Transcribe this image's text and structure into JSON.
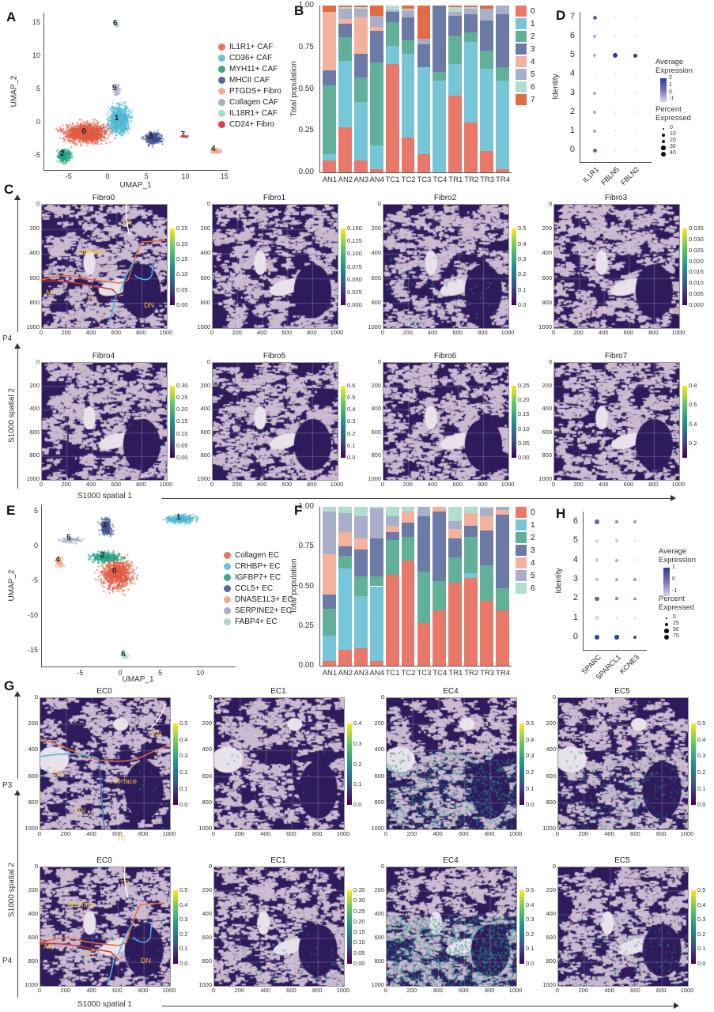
{
  "panel_labels": {
    "A": "A",
    "B": "B",
    "C": "C",
    "D": "D",
    "E": "E",
    "F": "F",
    "G": "G",
    "H": "H"
  },
  "chart_data": [
    {
      "id": "A",
      "type": "scatter",
      "xlabel": "UMAP_1",
      "ylabel": "UMAP_2",
      "xticks": [
        -5,
        0,
        5,
        10,
        15
      ],
      "yticks": [
        -5,
        0,
        5,
        10,
        15
      ],
      "xlim": [
        -8.5,
        15.5
      ],
      "ylim": [
        -7,
        16.5
      ],
      "legend": [
        {
          "label": "IL1R1+ CAF",
          "color": "#e8735f"
        },
        {
          "label": "CD36+ CAF",
          "color": "#6cc3d8"
        },
        {
          "label": "MYH11+ CAF",
          "color": "#3aa88c"
        },
        {
          "label": "MHCII CAF",
          "color": "#58689c"
        },
        {
          "label": "PTGDS+ Fibro",
          "color": "#f0ae98"
        },
        {
          "label": "Collagen CAF",
          "color": "#a7acc8"
        },
        {
          "label": "IL18R1+ CAF",
          "color": "#a9dac9"
        },
        {
          "label": "CD24+ Fibro",
          "color": "#e0434f"
        }
      ],
      "cluster_colors": [
        "#e05a40",
        "#4fb8d4",
        "#22a182",
        "#3d4f8f",
        "#eea585",
        "#a4a8c8",
        "#a0d5c4",
        "#d93a3a"
      ],
      "clusters": [
        {
          "label": "0",
          "center": [
            -2.8,
            -1.5
          ]
        },
        {
          "label": "1",
          "center": [
            1.4,
            0.5
          ]
        },
        {
          "label": "2",
          "center": [
            -5.6,
            -4.9
          ]
        },
        {
          "label": "3",
          "center": [
            5.8,
            -2.3
          ]
        },
        {
          "label": "4",
          "center": [
            13.8,
            -4.2
          ]
        },
        {
          "label": "5",
          "center": [
            1.1,
            5.0
          ]
        },
        {
          "label": "6",
          "center": [
            1.2,
            14.8
          ]
        },
        {
          "label": "7",
          "center": [
            9.9,
            -2.0
          ]
        }
      ]
    },
    {
      "id": "B",
      "type": "bar",
      "stacked": true,
      "ylabel": "Total population",
      "ylim": [
        0,
        1
      ],
      "yticks": [
        "0.00",
        "0.25",
        "0.50",
        "0.75",
        "1.00"
      ],
      "categories": [
        "AN1",
        "AN2",
        "AN3",
        "AN4",
        "TC1",
        "TC2",
        "TC3",
        "TC4",
        "TR1",
        "TR2",
        "TR3",
        "TR4"
      ],
      "legend_position": "right",
      "series": [
        {
          "name": "0",
          "color": "#e8786a",
          "values": [
            0.07,
            0.27,
            0.07,
            0.02,
            0.65,
            0.21,
            0.11,
            0.0,
            0.46,
            0.3,
            0.13,
            0.02
          ]
        },
        {
          "name": "1",
          "color": "#78c5d8",
          "values": [
            0.04,
            0.4,
            0.35,
            0.14,
            0.11,
            0.5,
            0.52,
            0.55,
            0.19,
            0.48,
            0.49,
            0.53
          ]
        },
        {
          "name": "2",
          "color": "#62b09a",
          "values": [
            0.41,
            0.14,
            0.15,
            0.5,
            0.14,
            0.08,
            0.0,
            0.05,
            0.17,
            0.06,
            0.11,
            0.08
          ]
        },
        {
          "name": "3",
          "color": "#6c7aa6",
          "values": [
            0.09,
            0.08,
            0.14,
            0.19,
            0.06,
            0.14,
            0.14,
            0.4,
            0.12,
            0.11,
            0.18,
            0.32
          ]
        },
        {
          "name": "4",
          "color": "#f2b29e",
          "values": [
            0.35,
            0.03,
            0.22,
            0.02,
            0.0,
            0.0,
            0.0,
            0.0,
            0.0,
            0.0,
            0.0,
            0.0
          ]
        },
        {
          "name": "5",
          "color": "#a9aec9",
          "values": [
            0.0,
            0.06,
            0.05,
            0.07,
            0.01,
            0.04,
            0.03,
            0.0,
            0.02,
            0.03,
            0.07,
            0.05
          ]
        },
        {
          "name": "6",
          "color": "#b3ddd0",
          "values": [
            0.0,
            0.01,
            0.01,
            0.0,
            0.03,
            0.01,
            0.0,
            0.0,
            0.03,
            0.01,
            0.0,
            0.0
          ]
        },
        {
          "name": "7",
          "color": "#e26a45",
          "values": [
            0.04,
            0.01,
            0.01,
            0.06,
            0.0,
            0.02,
            0.2,
            0.0,
            0.01,
            0.01,
            0.02,
            0.0
          ]
        }
      ]
    },
    {
      "id": "D",
      "type": "dotplot",
      "ylabel": "Identity",
      "identities": [
        "0",
        "1",
        "2",
        "3",
        "4",
        "5",
        "6",
        "7"
      ],
      "genes": [
        "IL1R1",
        "FBLN5",
        "FBLN2"
      ],
      "avg_expression": [
        [
          1.5,
          -1,
          -1
        ],
        [
          0,
          -1,
          -1
        ],
        [
          0,
          -1,
          -1
        ],
        [
          0,
          -1,
          -1
        ],
        [
          -1,
          -1,
          -1
        ],
        [
          0,
          2.5,
          2.5
        ],
        [
          0,
          -1,
          -1
        ],
        [
          1.5,
          -1,
          -1
        ]
      ],
      "percent_expressed": [
        [
          25,
          3,
          3
        ],
        [
          8,
          3,
          3
        ],
        [
          10,
          4,
          4
        ],
        [
          12,
          3,
          3
        ],
        [
          2,
          3,
          3
        ],
        [
          10,
          45,
          25
        ],
        [
          12,
          3,
          3
        ],
        [
          25,
          3,
          3
        ]
      ],
      "color_legend_title": "Average Expression",
      "color_ticks": [
        "2",
        "1",
        "0",
        "-1"
      ],
      "size_legend_title": "Percent Expressed",
      "size_ticks": [
        "0",
        "10",
        "20",
        "30",
        "40"
      ]
    },
    {
      "id": "E",
      "type": "scatter",
      "xlabel": "UMAP_1",
      "ylabel": "UMAP_2",
      "xticks": [
        -5,
        0,
        5,
        10
      ],
      "yticks": [
        -15,
        -10,
        -5,
        0,
        5
      ],
      "xlim": [
        -10,
        14
      ],
      "ylim": [
        -17.5,
        5.5
      ],
      "legend": [
        {
          "label": "Collagen EC",
          "color": "#e8735f"
        },
        {
          "label": "CRHBP+ EC",
          "color": "#6cc3d8"
        },
        {
          "label": "IGFBP7+ EC",
          "color": "#3aa88c"
        },
        {
          "label": "CCL5+ EC",
          "color": "#58689c"
        },
        {
          "label": "DNASE1L3+ EC",
          "color": "#f0ae98"
        },
        {
          "label": "SERPINE2+ EC",
          "color": "#a7acc8"
        },
        {
          "label": "FABP4+ EC",
          "color": "#a9dac9"
        }
      ],
      "cluster_colors": [
        "#e05a40",
        "#4fb8d4",
        "#22a182",
        "#3d4f8f",
        "#eea585",
        "#a4a8c8",
        "#a0d5c4"
      ],
      "clusters": [
        {
          "label": "0",
          "center": [
            -0.5,
            -3.8
          ]
        },
        {
          "label": "1",
          "center": [
            7.5,
            4.0
          ]
        },
        {
          "label": "2",
          "center": [
            -2.0,
            -1.5
          ]
        },
        {
          "label": "3",
          "center": [
            -1.8,
            2.8
          ]
        },
        {
          "label": "4",
          "center": [
            -7.6,
            -2.2
          ]
        },
        {
          "label": "5",
          "center": [
            -6.2,
            1.0
          ]
        },
        {
          "label": "6",
          "center": [
            0.6,
            -15.7
          ]
        }
      ]
    },
    {
      "id": "F",
      "type": "bar",
      "stacked": true,
      "ylabel": "Total population",
      "ylim": [
        0,
        1
      ],
      "yticks": [
        "0.00",
        "0.25",
        "0.50",
        "0.75",
        "1.00"
      ],
      "categories": [
        "AN1",
        "AN2",
        "AN3",
        "AN4",
        "TC1",
        "TC2",
        "TC3",
        "TC4",
        "TR1",
        "TR2",
        "TR3",
        "TR4"
      ],
      "legend_position": "right",
      "series": [
        {
          "name": "0",
          "color": "#e8786a",
          "values": [
            0.03,
            0.1,
            0.11,
            0.03,
            0.57,
            0.66,
            0.27,
            0.35,
            0.52,
            0.55,
            0.41,
            0.35
          ]
        },
        {
          "name": "1",
          "color": "#78c5d8",
          "values": [
            0.16,
            0.51,
            0.33,
            0.47,
            0.0,
            0.0,
            0.0,
            0.0,
            0.0,
            0.03,
            0.0,
            0.0
          ]
        },
        {
          "name": "2",
          "color": "#62b09a",
          "values": [
            0.17,
            0.08,
            0.12,
            0.06,
            0.22,
            0.15,
            0.32,
            0.18,
            0.16,
            0.23,
            0.22,
            0.14
          ]
        },
        {
          "name": "3",
          "color": "#6c7aa6",
          "values": [
            0.09,
            0.06,
            0.17,
            0.24,
            0.05,
            0.09,
            0.35,
            0.44,
            0.12,
            0.07,
            0.22,
            0.46
          ]
        },
        {
          "name": "4",
          "color": "#f2b29e",
          "values": [
            0.25,
            0.09,
            0.07,
            0.0,
            0.04,
            0.07,
            0.0,
            0.03,
            0.06,
            0.08,
            0.09,
            0.03
          ]
        },
        {
          "name": "5",
          "color": "#a9aec9",
          "values": [
            0.27,
            0.12,
            0.14,
            0.19,
            0.06,
            0.0,
            0.06,
            0.0,
            0.05,
            0.0,
            0.05,
            0.02
          ]
        },
        {
          "name": "6",
          "color": "#b3ddd0",
          "values": [
            0.03,
            0.04,
            0.06,
            0.01,
            0.06,
            0.03,
            0.0,
            0.0,
            0.09,
            0.04,
            0.01,
            0.0
          ]
        }
      ]
    },
    {
      "id": "H",
      "type": "dotplot",
      "ylabel": "Identity",
      "identities": [
        "0",
        "1",
        "2",
        "3",
        "4",
        "5",
        "6"
      ],
      "genes": [
        "SPARC",
        "SPARCL1",
        "KCNE3"
      ],
      "avg_expression": [
        [
          1.5,
          1.5,
          1.5
        ],
        [
          -1,
          -1,
          -1
        ],
        [
          0.8,
          0.5,
          0.3
        ],
        [
          -0.5,
          -0.2,
          0
        ],
        [
          -0.8,
          -0.3,
          -1
        ],
        [
          -1,
          -0.7,
          -1
        ],
        [
          0.8,
          0.3,
          0
        ]
      ],
      "percent_expressed": [
        [
          65,
          50,
          25
        ],
        [
          45,
          3,
          3
        ],
        [
          45,
          25,
          10
        ],
        [
          40,
          25,
          8
        ],
        [
          40,
          25,
          3
        ],
        [
          40,
          20,
          5
        ],
        [
          50,
          25,
          8
        ]
      ],
      "color_legend_title": "Average Expression",
      "color_ticks": [
        "1",
        "0",
        "-1"
      ],
      "size_legend_title": "Percent Expressed",
      "size_ticks": [
        "0",
        "25",
        "50",
        "75"
      ]
    }
  ],
  "panel_c": {
    "row_label": "P4",
    "y_axis_label": "S1000 spatial 2",
    "x_axis_label": "S1000 spatial 1",
    "axis_ticks": [
      "0",
      "200",
      "400",
      "600",
      "800",
      "1000"
    ],
    "regions": [
      "TR",
      "Interface",
      "AN",
      "TC",
      "DN"
    ],
    "maps": [
      {
        "title": "Fibro0",
        "colorbar_ticks": [
          "0.25",
          "0.20",
          "0.15",
          "0.10",
          "0.05",
          "0.00"
        ]
      },
      {
        "title": "Fibro1",
        "colorbar_ticks": [
          "0.150",
          "0.125",
          "0.100",
          "0.075",
          "0.050",
          "0.025",
          "0.000"
        ]
      },
      {
        "title": "Fibro2",
        "colorbar_ticks": [
          "0.5",
          "0.4",
          "0.3",
          "0.2",
          "0.1",
          "0.0"
        ]
      },
      {
        "title": "Fibro3",
        "colorbar_ticks": [
          "0.035",
          "0.030",
          "0.025",
          "0.020",
          "0.015",
          "0.010",
          "0.005",
          "0.000"
        ]
      },
      {
        "title": "Fibro4",
        "colorbar_ticks": [
          "0.30",
          "0.25",
          "0.20",
          "0.15",
          "0.10",
          "0.05",
          "0.00"
        ]
      },
      {
        "title": "Fibro5",
        "colorbar_ticks": [
          "0.6",
          "0.5",
          "0.4",
          "0.3",
          "0.2",
          "0.1",
          "0.0"
        ]
      },
      {
        "title": "Fibro6",
        "colorbar_ticks": [
          "0.25",
          "0.20",
          "0.15",
          "0.10",
          "0.05",
          "0.00"
        ]
      },
      {
        "title": "Fibro7",
        "colorbar_ticks": [
          "0.8",
          "0.6",
          "0.4",
          "0.2"
        ]
      }
    ]
  },
  "panel_g": {
    "row_labels": [
      "P3",
      "P4"
    ],
    "y_axis_label": "S1000 spatial 2",
    "x_axis_label": "S1000 spatial 1",
    "axis_ticks": [
      "0",
      "200",
      "400",
      "600",
      "800",
      "1000"
    ],
    "regions_p3": [
      "AN",
      "TR",
      "Interface",
      "DN",
      "TC"
    ],
    "regions_p4": [
      "TR",
      "Interface",
      "AN",
      "TC",
      "DN"
    ],
    "maps": [
      {
        "title": "EC0",
        "colorbar_ticks": [
          "0.5",
          "0.4",
          "0.3",
          "0.2",
          "0.1",
          "0.0"
        ]
      },
      {
        "title": "EC1",
        "colorbar_ticks": [
          "0.4",
          "0.3",
          "0.2",
          "0.1",
          "0.0"
        ]
      },
      {
        "title": "EC4",
        "colorbar_ticks": [
          "0.5",
          "0.4",
          "0.3",
          "0.2",
          "0.1",
          "0.0"
        ]
      },
      {
        "title": "EC5",
        "colorbar_ticks": [
          "0.5",
          "0.4",
          "0.3",
          "0.2",
          "0.1",
          "0.0"
        ]
      },
      {
        "title": "EC0",
        "colorbar_ticks": [
          "0.5",
          "0.4",
          "0.3",
          "0.2",
          "0.1",
          "0.0"
        ]
      },
      {
        "title": "EC1",
        "colorbar_ticks": [
          "0.35",
          "0.30",
          "0.25",
          "0.20",
          "0.15",
          "0.10",
          "0.05",
          "0.00"
        ]
      },
      {
        "title": "EC4",
        "colorbar_ticks": [
          "0.5",
          "0.4",
          "0.3",
          "0.2",
          "0.1",
          "0.0"
        ]
      },
      {
        "title": "EC5",
        "colorbar_ticks": [
          "0.5",
          "0.4",
          "0.3",
          "0.2",
          "0.1",
          "0.0"
        ]
      }
    ]
  }
}
